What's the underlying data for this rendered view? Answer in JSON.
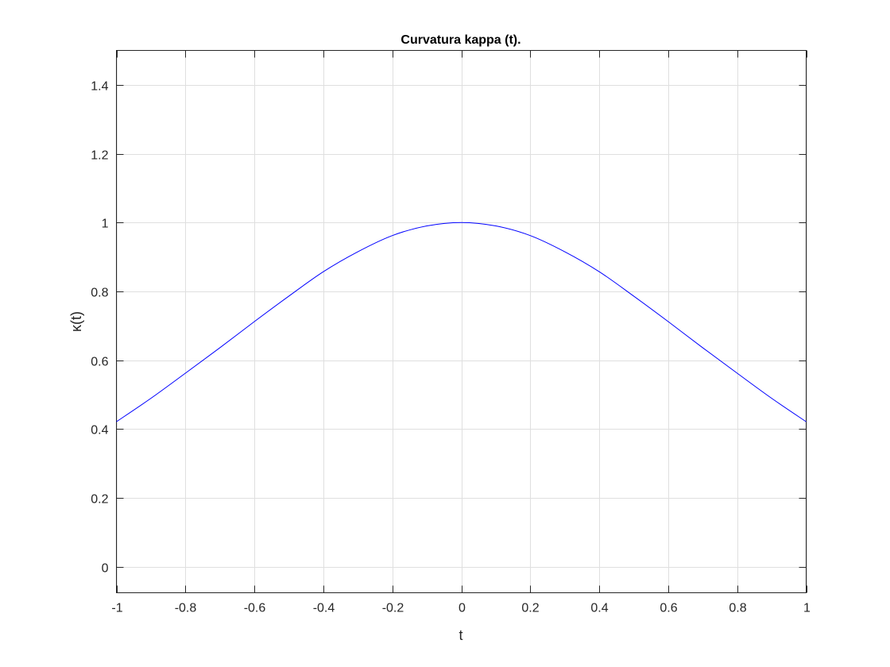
{
  "chart_data": {
    "type": "line",
    "title": "Curvatura kappa (t).",
    "xlabel": "t",
    "ylabel": "κ(t)",
    "xlim": [
      -1,
      1
    ],
    "ylim": [
      -0.076,
      1.5
    ],
    "grid": true,
    "xticks": [
      -1,
      -0.8,
      -0.6,
      -0.4,
      -0.2,
      0,
      0.2,
      0.4,
      0.6,
      0.8,
      1
    ],
    "xtick_labels": [
      "-1",
      "-0.8",
      "-0.6",
      "-0.4",
      "-0.2",
      "0",
      "0.2",
      "0.4",
      "0.6",
      "0.8",
      "1"
    ],
    "yticks": [
      0,
      0.2,
      0.4,
      0.6,
      0.8,
      1,
      1.2,
      1.4
    ],
    "ytick_labels": [
      "0",
      "0.2",
      "0.4",
      "0.6",
      "0.8",
      "1",
      "1.2",
      "1.4"
    ],
    "series": [
      {
        "name": "kappa",
        "color": "#0000ff",
        "x": [
          -1,
          -0.9,
          -0.8,
          -0.7,
          -0.6,
          -0.5,
          -0.4,
          -0.3,
          -0.2,
          -0.1,
          0,
          0.1,
          0.2,
          0.3,
          0.4,
          0.5,
          0.6,
          0.7,
          0.8,
          0.9,
          1
        ],
        "y": [
          0.421,
          0.489,
          0.562,
          0.636,
          0.712,
          0.786,
          0.857,
          0.915,
          0.962,
          0.99,
          1.0,
          0.99,
          0.962,
          0.915,
          0.857,
          0.786,
          0.712,
          0.636,
          0.562,
          0.489,
          0.421
        ]
      }
    ]
  }
}
